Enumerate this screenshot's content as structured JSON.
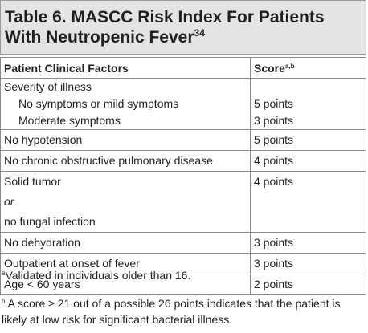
{
  "title": {
    "line1": "Table 6. MASCC Risk Index For Patients",
    "line2": "With Neutropenic Fever",
    "ref": "34"
  },
  "table": {
    "headers": {
      "factor": "Patient Clinical Factors",
      "score": "Score",
      "score_sup": "a,b"
    },
    "severity": {
      "label": "Severity of illness",
      "items": [
        {
          "label": "No symptoms or mild symptoms",
          "score": "5 points"
        },
        {
          "label": "Moderate symptoms",
          "score": "3 points"
        }
      ]
    },
    "rows": [
      {
        "label": "No hypotension",
        "score": "5 points"
      },
      {
        "label": "No chronic obstructive pulmonary disease",
        "score": "4 points"
      },
      {
        "label_pre": "Solid tumor ",
        "label_em": "or",
        "label_post": " no fungal infection",
        "score": "4 points"
      },
      {
        "label": "No dehydration",
        "score": "3 points"
      },
      {
        "label": "Outpatient at onset of fever",
        "score": "3 points"
      },
      {
        "label": "Age < 60 years",
        "score": "2 points"
      }
    ]
  },
  "footnotes": {
    "a": {
      "mark": "a",
      "text": "Validated in individuals older than 16."
    },
    "b": {
      "mark": "b",
      "text": " A score ≥ 21 out of a possible 26 points indicates that the patient is likely at low risk for significant bacterial illness."
    }
  }
}
